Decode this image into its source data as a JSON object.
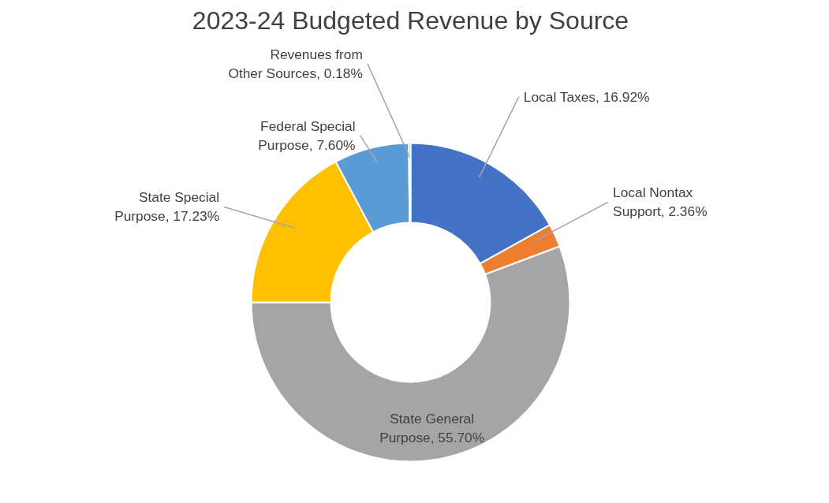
{
  "chart_data": {
    "type": "donut",
    "title": "2023-24 Budgeted Revenue by Source",
    "categories": [
      "Local Taxes",
      "Local Nontax Support",
      "State General Purpose",
      "State Special Purpose",
      "Federal Special Purpose",
      "Revenues from Other Sources"
    ],
    "values": [
      16.92,
      2.36,
      55.7,
      17.23,
      7.6,
      0.18
    ],
    "value_labels": [
      "16.92%",
      "2.36%",
      "55.70%",
      "17.23%",
      "7.60%",
      "0.18%"
    ],
    "colors": [
      "#4472c4",
      "#ed7d31",
      "#a5a5a5",
      "#ffc000",
      "#5b9bd5",
      "#264478"
    ],
    "legend": false
  }
}
